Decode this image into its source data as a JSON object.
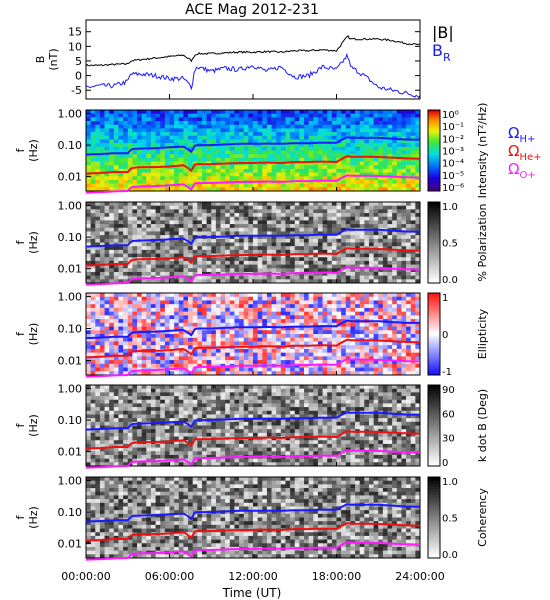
{
  "title": "ACE Mag 2012-231",
  "colors": {
    "blue": "#1a1aff",
    "red": "#ee1111",
    "magenta": "#ff1aff",
    "black": "#000000"
  },
  "chart_data": [
    {
      "type": "line",
      "ylabel": "B (nT)",
      "ylim": [
        -8,
        19
      ],
      "yticks": [
        "15",
        "10",
        "5",
        "0",
        "-5"
      ],
      "ytick_values": [
        15,
        10,
        5,
        0,
        -5
      ],
      "legend": [
        "|B|",
        "B_R"
      ],
      "x_hours": [
        0,
        1,
        2,
        3,
        3.2,
        4,
        5,
        6,
        7,
        7.6,
        7.8,
        8,
        9,
        10,
        11,
        12,
        13,
        14,
        15,
        16,
        17,
        18,
        18.8,
        19,
        20,
        21,
        22,
        23,
        24
      ],
      "series": [
        {
          "name": "|B|",
          "color": "#000000",
          "values": [
            3.5,
            3.5,
            3.8,
            4.0,
            5.0,
            5.5,
            6.0,
            6.5,
            7.0,
            5.0,
            7.0,
            7.5,
            7.5,
            7.8,
            8.0,
            8.0,
            8.2,
            8.0,
            8.5,
            8.5,
            8.8,
            8.5,
            13.5,
            12.5,
            12.5,
            12.5,
            12.0,
            11.0,
            10.5
          ]
        },
        {
          "name": "B_R",
          "color": "#1a1aff",
          "values": [
            -4.0,
            -3.5,
            -3.5,
            -2.0,
            0.5,
            0.5,
            0.0,
            -1.0,
            -1.0,
            -4.0,
            2.0,
            3.0,
            1.5,
            2.5,
            2.0,
            3.5,
            1.5,
            3.0,
            -0.5,
            0.0,
            3.0,
            2.0,
            7.0,
            3.0,
            0.0,
            -4.0,
            -5.0,
            -6.0,
            -7.0
          ]
        }
      ]
    },
    {
      "type": "heatmap",
      "ylabel": "f (Hz)",
      "yticks": [
        "1.00",
        "0.10",
        "0.01"
      ],
      "colorbar_label": "Intensity (nT²/Hz)",
      "colorbar_ticks": [
        "10⁰",
        "10⁻¹",
        "10⁻²",
        "10⁻³",
        "10⁻⁴",
        "10⁻⁵",
        "10⁻⁶"
      ],
      "gyro_labels": [
        {
          "text": "Ω",
          "sub": "H+",
          "color": "#1a1aff"
        },
        {
          "text": "Ω",
          "sub": "He+",
          "color": "#ee1111"
        },
        {
          "text": "Ω",
          "sub": "O+",
          "color": "#ff1aff"
        }
      ]
    },
    {
      "type": "heatmap",
      "ylabel": "f (Hz)",
      "yticks": [
        "1.00",
        "0.10",
        "0.01"
      ],
      "colorbar_label": "% Polarization",
      "colorbar_ticks": [
        "1.0",
        "0.5",
        "0.0"
      ]
    },
    {
      "type": "heatmap",
      "ylabel": "f (Hz)",
      "yticks": [
        "1.00",
        "0.10",
        "0.01"
      ],
      "colorbar_label": "Ellipticity",
      "colorbar_ticks": [
        "1",
        "0",
        "-1"
      ]
    },
    {
      "type": "heatmap",
      "ylabel": "f (Hz)",
      "yticks": [
        "1.00",
        "0.10",
        "0.01"
      ],
      "colorbar_label": "k dot B (Deg)",
      "colorbar_ticks": [
        "90",
        "60",
        "30",
        "0"
      ]
    },
    {
      "type": "heatmap",
      "ylabel": "f (Hz)",
      "yticks": [
        "1.00",
        "0.10",
        "0.01"
      ],
      "colorbar_label": "Coherency",
      "colorbar_ticks": [
        "1.0",
        "0.5",
        "0.0"
      ]
    }
  ],
  "xaxis": {
    "label": "Time (UT)",
    "ticks": [
      "00:00:00",
      "06:00:00",
      "12:00:00",
      "18:00:00",
      "24:00:00"
    ],
    "tick_hours": [
      0,
      6,
      12,
      18,
      24
    ]
  },
  "gyro_curves": {
    "x_hours": [
      0,
      1,
      2,
      3,
      3.3,
      4,
      5,
      6,
      7,
      7.6,
      7.8,
      8,
      9,
      10,
      11,
      12,
      13,
      14,
      15,
      16,
      17,
      18,
      18.8,
      19,
      20,
      21,
      22,
      23,
      24
    ],
    "H_plus_hz": [
      0.05,
      0.052,
      0.055,
      0.055,
      0.075,
      0.078,
      0.08,
      0.085,
      0.09,
      0.06,
      0.095,
      0.1,
      0.1,
      0.105,
      0.11,
      0.11,
      0.112,
      0.11,
      0.115,
      0.115,
      0.12,
      0.118,
      0.18,
      0.17,
      0.17,
      0.17,
      0.16,
      0.15,
      0.15
    ],
    "He_plus_hz": [
      0.0125,
      0.013,
      0.014,
      0.014,
      0.019,
      0.02,
      0.02,
      0.021,
      0.023,
      0.015,
      0.024,
      0.025,
      0.025,
      0.026,
      0.027,
      0.027,
      0.028,
      0.027,
      0.029,
      0.029,
      0.03,
      0.029,
      0.045,
      0.043,
      0.043,
      0.042,
      0.04,
      0.038,
      0.037
    ],
    "O_plus_hz": [
      0.0031,
      0.0032,
      0.0034,
      0.0035,
      0.0047,
      0.0049,
      0.005,
      0.0053,
      0.0057,
      0.0038,
      0.006,
      0.0063,
      0.0063,
      0.0065,
      0.0068,
      0.0068,
      0.007,
      0.0068,
      0.0072,
      0.0072,
      0.0075,
      0.0073,
      0.0112,
      0.0107,
      0.0107,
      0.0105,
      0.01,
      0.0095,
      0.0093
    ]
  }
}
